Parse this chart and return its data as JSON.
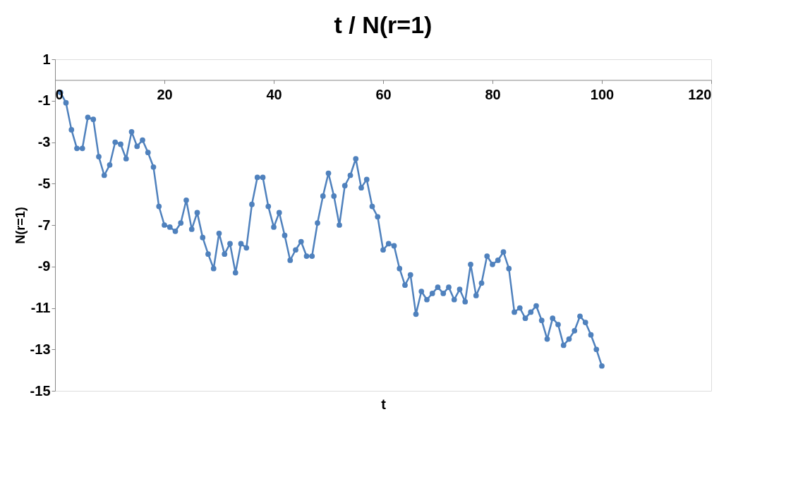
{
  "chart_data": {
    "type": "line",
    "title": "t / N(r=1)",
    "xlabel": "t",
    "ylabel": "N(r=1)",
    "x": [
      1,
      2,
      3,
      4,
      5,
      6,
      7,
      8,
      9,
      10,
      11,
      12,
      13,
      14,
      15,
      16,
      17,
      18,
      19,
      20,
      21,
      22,
      23,
      24,
      25,
      26,
      27,
      28,
      29,
      30,
      31,
      32,
      33,
      34,
      35,
      36,
      37,
      38,
      39,
      40,
      41,
      42,
      43,
      44,
      45,
      46,
      47,
      48,
      49,
      50,
      51,
      52,
      53,
      54,
      55,
      56,
      57,
      58,
      59,
      60,
      61,
      62,
      63,
      64,
      65,
      66,
      67,
      68,
      69,
      70,
      71,
      72,
      73,
      74,
      75,
      76,
      77,
      78,
      79,
      80,
      81,
      82,
      83,
      84,
      85,
      86,
      87,
      88,
      89,
      90,
      91,
      92,
      93,
      94,
      95,
      96,
      97,
      98,
      99,
      100
    ],
    "series": [
      {
        "color": "#4f81bd",
        "values": [
          -0.6,
          -1.1,
          -2.4,
          -3.3,
          -3.3,
          -1.8,
          -1.9,
          -3.7,
          -4.6,
          -4.1,
          -3.0,
          -3.1,
          -3.8,
          -2.5,
          -3.2,
          -2.9,
          -3.5,
          -4.2,
          -6.1,
          -7.0,
          -7.1,
          -7.3,
          -6.9,
          -5.8,
          -7.2,
          -6.4,
          -7.6,
          -8.4,
          -9.1,
          -7.4,
          -8.4,
          -7.9,
          -9.3,
          -7.9,
          -8.1,
          -6.0,
          -4.7,
          -4.7,
          -6.1,
          -7.1,
          -6.4,
          -7.5,
          -8.7,
          -8.2,
          -7.8,
          -8.5,
          -8.5,
          -6.9,
          -5.6,
          -4.5,
          -5.6,
          -7.0,
          -5.1,
          -4.6,
          -3.8,
          -5.2,
          -4.8,
          -6.1,
          -6.6,
          -8.2,
          -7.9,
          -8.0,
          -9.1,
          -9.9,
          -9.4,
          -11.3,
          -10.2,
          -10.6,
          -10.3,
          -10.0,
          -10.3,
          -10.0,
          -10.6,
          -10.1,
          -10.7,
          -8.9,
          -10.4,
          -9.8,
          -8.5,
          -8.9,
          -8.7,
          -8.3,
          -9.1,
          -11.2,
          -11.0,
          -11.5,
          -11.2,
          -10.9,
          -11.6,
          -12.5,
          -11.5,
          -11.8,
          -12.8,
          -12.5,
          -12.1,
          -11.4,
          -11.7,
          -12.3,
          -13.0,
          -13.8
        ]
      }
    ],
    "xlim": [
      0,
      120
    ],
    "xticks": [
      0,
      20,
      40,
      60,
      80,
      100,
      120
    ],
    "ylim": [
      -15,
      1
    ],
    "yticks": [
      1,
      -1,
      -3,
      -5,
      -7,
      -9,
      -11,
      -13,
      -15
    ],
    "grid": false,
    "marker": "circle",
    "line_style": "solid"
  }
}
